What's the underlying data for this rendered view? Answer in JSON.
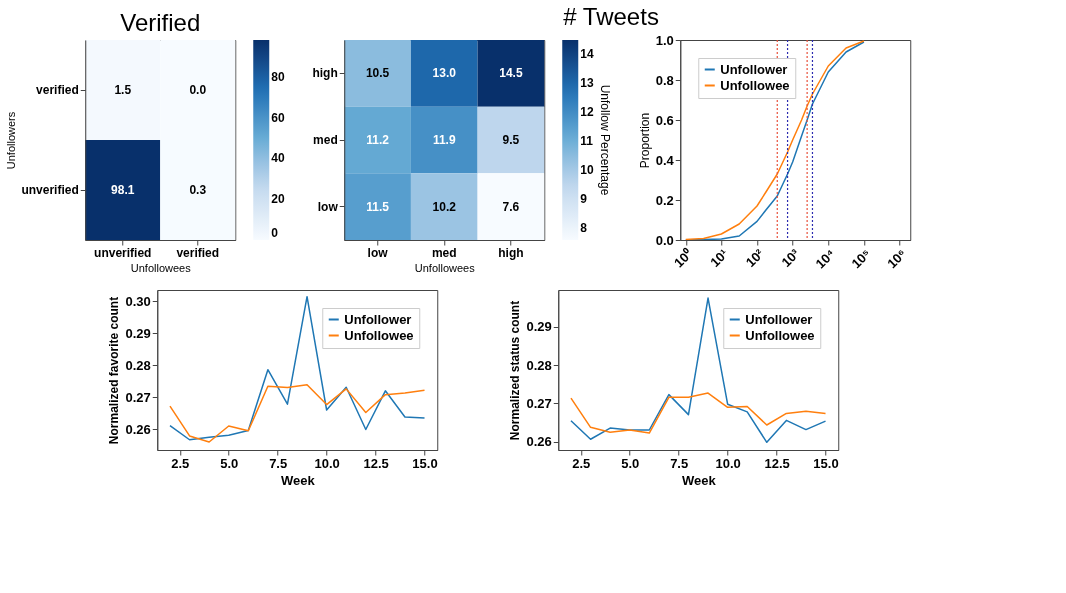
{
  "chart_data": [
    {
      "type": "heatmap",
      "title": "Verified",
      "xlabel": "Unfollowees",
      "ylabel": "Unfollowers",
      "categories": [
        "unverified",
        "verified"
      ],
      "y_categories": [
        "verified",
        "unverified"
      ],
      "cells": [
        [
          1.5,
          0.0
        ],
        [
          98.1,
          0.3
        ]
      ],
      "cell_labels": [
        [
          "1.5",
          "0.0"
        ],
        [
          "98.1",
          "0.3"
        ]
      ],
      "clim": [
        0,
        98.1
      ],
      "cticks": [
        0,
        20,
        40,
        60,
        80
      ]
    },
    {
      "type": "heatmap",
      "annotations": [
        "# Tweets"
      ],
      "xlabel": "Unfollowees",
      "clabel": "Unfollow Percentage",
      "categories": [
        "low",
        "med",
        "high"
      ],
      "y_categories": [
        "high",
        "med",
        "low"
      ],
      "cells": [
        [
          10.5,
          13.0,
          14.5
        ],
        [
          11.2,
          11.9,
          9.5
        ],
        [
          11.5,
          10.2,
          7.6
        ]
      ],
      "cell_labels": [
        [
          "10.5",
          "13.0",
          "14.5"
        ],
        [
          "11.2",
          "11.9",
          "9.5"
        ],
        [
          "11.5",
          "10.2",
          "7.6"
        ]
      ],
      "clim": [
        7.6,
        14.5
      ],
      "cticks": [
        8,
        9,
        10,
        11,
        12,
        13,
        14
      ]
    },
    {
      "type": "line",
      "ylabel": "Proportion",
      "log": "x",
      "xlim": [
        0.7,
        2000000
      ],
      "xticks": [
        {
          "value": 1,
          "label": "10⁰"
        },
        {
          "value": 10,
          "label": "10¹"
        },
        {
          "value": 100,
          "label": "10²"
        },
        {
          "value": 1000,
          "label": "10³"
        },
        {
          "value": 10000,
          "label": "10⁴"
        },
        {
          "value": 100000,
          "label": "10⁵"
        },
        {
          "value": 1000000,
          "label": "10⁶"
        }
      ],
      "ylim": [
        0,
        1
      ],
      "yticks": [
        {
          "value": 0,
          "label": "0.0"
        },
        0.2,
        0.4,
        0.6,
        0.8,
        {
          "value": 1,
          "label": "1.0"
        }
      ],
      "grid": false,
      "legend": "top left",
      "series": [
        {
          "name": "Unfollower",
          "color": "#1f77b4",
          "x": [
            1,
            3.16,
            10,
            31.6,
            100,
            178,
            370,
            720,
            1000,
            1780,
            2550,
            3600,
            10000,
            31600,
            100000
          ],
          "values": [
            0,
            0.002,
            0.005,
            0.02,
            0.093,
            0.15,
            0.22,
            0.33,
            0.39,
            0.52,
            0.6,
            0.68,
            0.84,
            0.94,
            0.99
          ]
        },
        {
          "name": "Unfollowee",
          "color": "#ff7f0e",
          "x": [
            1,
            3.16,
            10,
            31.6,
            100,
            178,
            370,
            720,
            1000,
            1780,
            2550,
            3600,
            10000,
            31600,
            100000
          ],
          "values": [
            0.003,
            0.008,
            0.03,
            0.08,
            0.17,
            0.24,
            0.33,
            0.44,
            0.5,
            0.6,
            0.67,
            0.73,
            0.87,
            0.96,
            0.995
          ]
        }
      ],
      "ref_lines": [
        {
          "axis": "x",
          "value": 370,
          "color": "#e8503a",
          "line_style": "dotted"
        },
        {
          "axis": "x",
          "value": 720,
          "color": "#2b2bb0",
          "line_style": "dotted"
        },
        {
          "axis": "x",
          "value": 2550,
          "color": "#e8503a",
          "line_style": "dotted"
        },
        {
          "axis": "x",
          "value": 3600,
          "color": "#2b2bb0",
          "line_style": "dotted"
        }
      ]
    },
    {
      "type": "line",
      "xlabel": "Week",
      "ylabel": "Normalized favorite count",
      "xlim": [
        1.35,
        15.65
      ],
      "xticks": [
        2.5,
        {
          "value": 5,
          "label": "5.0"
        },
        7.5,
        {
          "value": 10,
          "label": "10.0"
        },
        12.5,
        {
          "value": 15,
          "label": "15.0"
        }
      ],
      "ylim": [
        0.2535,
        0.3035
      ],
      "yticks": [
        {
          "value": 0.26,
          "label": "0.26"
        },
        {
          "value": 0.27,
          "label": "0.27"
        },
        {
          "value": 0.28,
          "label": "0.28"
        },
        {
          "value": 0.29,
          "label": "0.29"
        },
        {
          "value": 0.3,
          "label": "0.30"
        }
      ],
      "grid": false,
      "legend": "top right",
      "x": [
        2,
        3,
        4,
        5,
        6,
        7,
        8,
        9,
        10,
        11,
        12,
        13,
        14,
        15
      ],
      "series": [
        {
          "name": "Unfollower",
          "color": "#1f77b4",
          "values": [
            0.2611,
            0.2567,
            0.2575,
            0.2581,
            0.2596,
            0.2786,
            0.2678,
            0.3014,
            0.266,
            0.2731,
            0.2599,
            0.272,
            0.2638,
            0.2635
          ]
        },
        {
          "name": "Unfollowee",
          "color": "#ff7f0e",
          "values": [
            0.2672,
            0.2579,
            0.256,
            0.261,
            0.2595,
            0.2734,
            0.273,
            0.2739,
            0.2677,
            0.2726,
            0.2652,
            0.2708,
            0.2713,
            0.2722
          ]
        }
      ]
    },
    {
      "type": "line",
      "xlabel": "Week",
      "ylabel": "Normalized status count",
      "xlim": [
        1.35,
        15.65
      ],
      "xticks": [
        2.5,
        {
          "value": 5,
          "label": "5.0"
        },
        7.5,
        {
          "value": 10,
          "label": "10.0"
        },
        12.5,
        {
          "value": 15,
          "label": "15.0"
        }
      ],
      "ylim": [
        0.2579,
        0.2995
      ],
      "yticks": [
        {
          "value": 0.26,
          "label": "0.26"
        },
        {
          "value": 0.27,
          "label": "0.27"
        },
        {
          "value": 0.28,
          "label": "0.28"
        },
        {
          "value": 0.29,
          "label": "0.29"
        }
      ],
      "grid": false,
      "legend": "top right",
      "x": [
        2,
        3,
        4,
        5,
        6,
        7,
        8,
        9,
        10,
        11,
        12,
        13,
        14,
        15
      ],
      "series": [
        {
          "name": "Unfollower",
          "color": "#1f77b4",
          "values": [
            0.2655,
            0.2607,
            0.2636,
            0.2631,
            0.2631,
            0.2723,
            0.2671,
            0.2974,
            0.2698,
            0.2678,
            0.2599,
            0.2656,
            0.2632,
            0.2654
          ]
        },
        {
          "name": "Unfollowee",
          "color": "#ff7f0e",
          "values": [
            0.2714,
            0.2638,
            0.2625,
            0.2631,
            0.2623,
            0.2716,
            0.2716,
            0.2727,
            0.269,
            0.2692,
            0.2644,
            0.2674,
            0.268,
            0.2674
          ]
        }
      ]
    }
  ]
}
